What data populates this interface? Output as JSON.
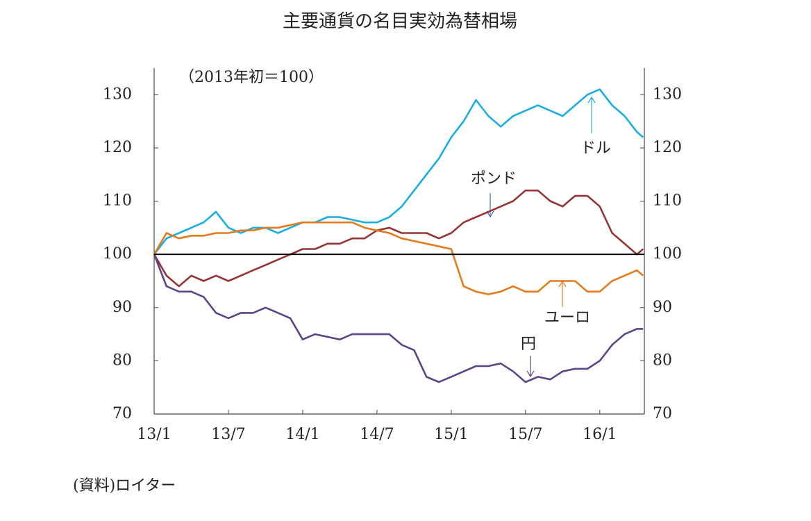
{
  "chart_data": {
    "type": "line",
    "title": "主要通貨の名目実効為替相場",
    "subtitle": "（2013年初＝100）",
    "source": "(資料)ロイター",
    "x": [
      0,
      1,
      2,
      3,
      4,
      5,
      6,
      7,
      8,
      9,
      10,
      11,
      12,
      13,
      14,
      15,
      16,
      17,
      18,
      19,
      20,
      21,
      22,
      23,
      24,
      25,
      26,
      27,
      28,
      29,
      30,
      31,
      32,
      33,
      34,
      35,
      36,
      37,
      38,
      39,
      39.5
    ],
    "xlim": [
      0,
      39.6
    ],
    "xticks": [
      {
        "value": 0,
        "label": "13/1"
      },
      {
        "value": 6,
        "label": "13/7"
      },
      {
        "value": 12,
        "label": "14/1"
      },
      {
        "value": 18,
        "label": "14/7"
      },
      {
        "value": 24,
        "label": "15/1"
      },
      {
        "value": 30,
        "label": "15/7"
      },
      {
        "value": 36,
        "label": "16/1"
      }
    ],
    "ylim": [
      70,
      135
    ],
    "yticks": [
      70,
      80,
      90,
      100,
      110,
      120,
      130
    ],
    "y2lim": [
      70,
      135
    ],
    "y2ticks": [
      70,
      80,
      90,
      100,
      110,
      120,
      130
    ],
    "reference_line": 100,
    "series": [
      {
        "name": "ドル",
        "color": "#19aee0",
        "values": [
          100,
          103,
          104,
          105,
          106,
          108,
          105,
          104,
          105,
          105,
          104,
          105,
          106,
          106,
          107,
          107,
          106.5,
          106,
          106,
          107,
          109,
          112,
          115,
          118,
          122,
          125,
          129,
          126,
          124,
          126,
          127,
          128,
          127,
          126,
          128,
          130,
          131,
          128,
          126,
          123,
          122
        ]
      },
      {
        "name": "ポンド",
        "color": "#953434",
        "values": [
          100,
          96,
          94,
          96,
          95,
          96,
          95,
          96,
          97,
          98,
          99,
          100,
          101,
          101,
          102,
          102,
          103,
          103,
          104.5,
          105,
          104,
          104,
          104,
          103,
          104,
          106,
          107,
          108,
          109,
          110,
          112,
          112,
          110,
          109,
          111,
          111,
          109,
          104,
          102,
          100,
          101
        ]
      },
      {
        "name": "ユーロ",
        "color": "#e47a1c",
        "values": [
          100,
          104,
          103,
          103.5,
          103.5,
          104,
          104,
          104.5,
          104.5,
          105,
          105,
          105.5,
          106,
          106,
          106,
          106,
          106,
          105,
          104.5,
          104,
          103,
          102.5,
          102,
          101.5,
          101,
          94,
          93,
          92.5,
          93,
          94,
          93,
          93,
          95,
          95,
          95,
          93,
          93,
          95,
          96,
          97,
          96
        ]
      },
      {
        "name": "円",
        "color": "#5c4485",
        "values": [
          100,
          94,
          93,
          93,
          92,
          89,
          88,
          89,
          89,
          90,
          89,
          88,
          84,
          85,
          84.5,
          84,
          85,
          85,
          85,
          85,
          83,
          82,
          77,
          76,
          77,
          78,
          79,
          79,
          79.5,
          78,
          76,
          77,
          76.5,
          78,
          78.5,
          78.5,
          80,
          83,
          85,
          86,
          86
        ]
      }
    ]
  }
}
